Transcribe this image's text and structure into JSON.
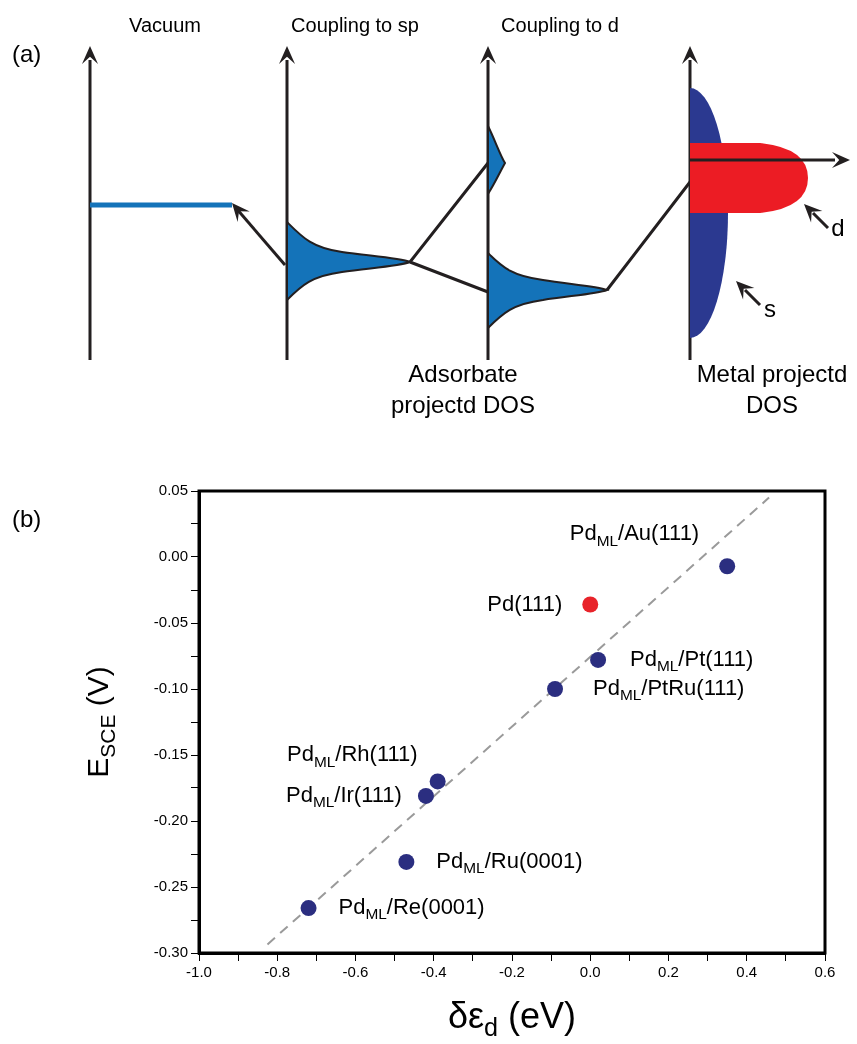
{
  "chart_data": [
    {
      "type": "other",
      "title": "(a)",
      "annotations": [
        "Vacuum",
        "Coupling to sp",
        "Coupling to d",
        "Adsorbate projectd DOS",
        "Metal projectd DOS",
        "d",
        "s"
      ]
    },
    {
      "type": "scatter",
      "title": "(b)",
      "xlabel": "δε$_{d}$ (eV)",
      "ylabel": "E$_{SCE}$ (V)",
      "xlim": [
        -1.0,
        0.6
      ],
      "ylim": [
        -0.3,
        0.05
      ],
      "xticks": [
        {
          "value": -1.0,
          "label": "-1.0"
        },
        {
          "value": -0.9,
          "label": null
        },
        -0.8,
        {
          "value": -0.7,
          "label": null
        },
        -0.6,
        {
          "value": -0.5,
          "label": null
        },
        -0.4,
        {
          "value": -0.3,
          "label": null
        },
        -0.2,
        {
          "value": -0.1,
          "label": null
        },
        {
          "value": 0,
          "label": "0.0"
        },
        {
          "value": 0.1,
          "label": null
        },
        0.2,
        {
          "value": 0.3,
          "label": null
        },
        0.4,
        {
          "value": 0.5,
          "label": null
        },
        0.6
      ],
      "yticks": [
        {
          "value": -0.3,
          "label": "-0.30"
        },
        {
          "value": -0.275,
          "label": null
        },
        -0.25,
        {
          "value": -0.225,
          "label": null
        },
        {
          "value": -0.2,
          "label": "-0.20"
        },
        {
          "value": -0.175,
          "label": null
        },
        -0.15,
        {
          "value": -0.125,
          "label": null
        },
        {
          "value": -0.1,
          "label": "-0.10"
        },
        {
          "value": -0.075,
          "label": null
        },
        -0.05,
        {
          "value": -0.025,
          "label": null
        },
        {
          "value": 0,
          "label": "0.00"
        },
        {
          "value": 0.025,
          "label": null
        },
        0.05
      ],
      "series": [
        {
          "type": "scatter",
          "marker": "circle",
          "x": [
            0.35,
            0.0,
            0.02,
            -0.09,
            -0.39,
            -0.42,
            -0.47,
            -0.72
          ],
          "values": [
            -0.007,
            -0.036,
            -0.078,
            -0.1,
            -0.17,
            -0.181,
            -0.231,
            -0.266
          ],
          "colors": [
            "#2b2e80",
            "#e8232a",
            "#2b2e80",
            "#2b2e80",
            "#2b2e80",
            "#2b2e80",
            "#2b2e80",
            "#2b2e80"
          ]
        },
        {
          "type": "line",
          "marker": "none",
          "line_style": "dashed",
          "color": "#9a9a9a",
          "x": [
            -0.825,
            0.457
          ],
          "values": [
            -0.2935,
            0.045
          ]
        }
      ],
      "annotations": [
        {
          "text": "Pd$_{ML}$/Au(111)",
          "x": 0.35,
          "y": -0.007
        },
        {
          "text": "Pd(111)",
          "x": 0.0,
          "y": -0.036
        },
        {
          "text": "Pd$_{ML}$/Pt(111)",
          "x": 0.02,
          "y": -0.078
        },
        {
          "text": "Pd$_{ML}$/PtRu(111)",
          "x": -0.09,
          "y": -0.1
        },
        {
          "text": "Pd$_{ML}$/Rh(111)",
          "x": -0.39,
          "y": -0.17
        },
        {
          "text": "Pd$_{ML}$/Ir(111)",
          "x": -0.42,
          "y": -0.181
        },
        {
          "text": "Pd$_{ML}$/Ru(0001)",
          "x": -0.47,
          "y": -0.231
        },
        {
          "text": "Pd$_{ML}$/Re(0001)",
          "x": -0.72,
          "y": -0.266
        }
      ]
    }
  ]
}
